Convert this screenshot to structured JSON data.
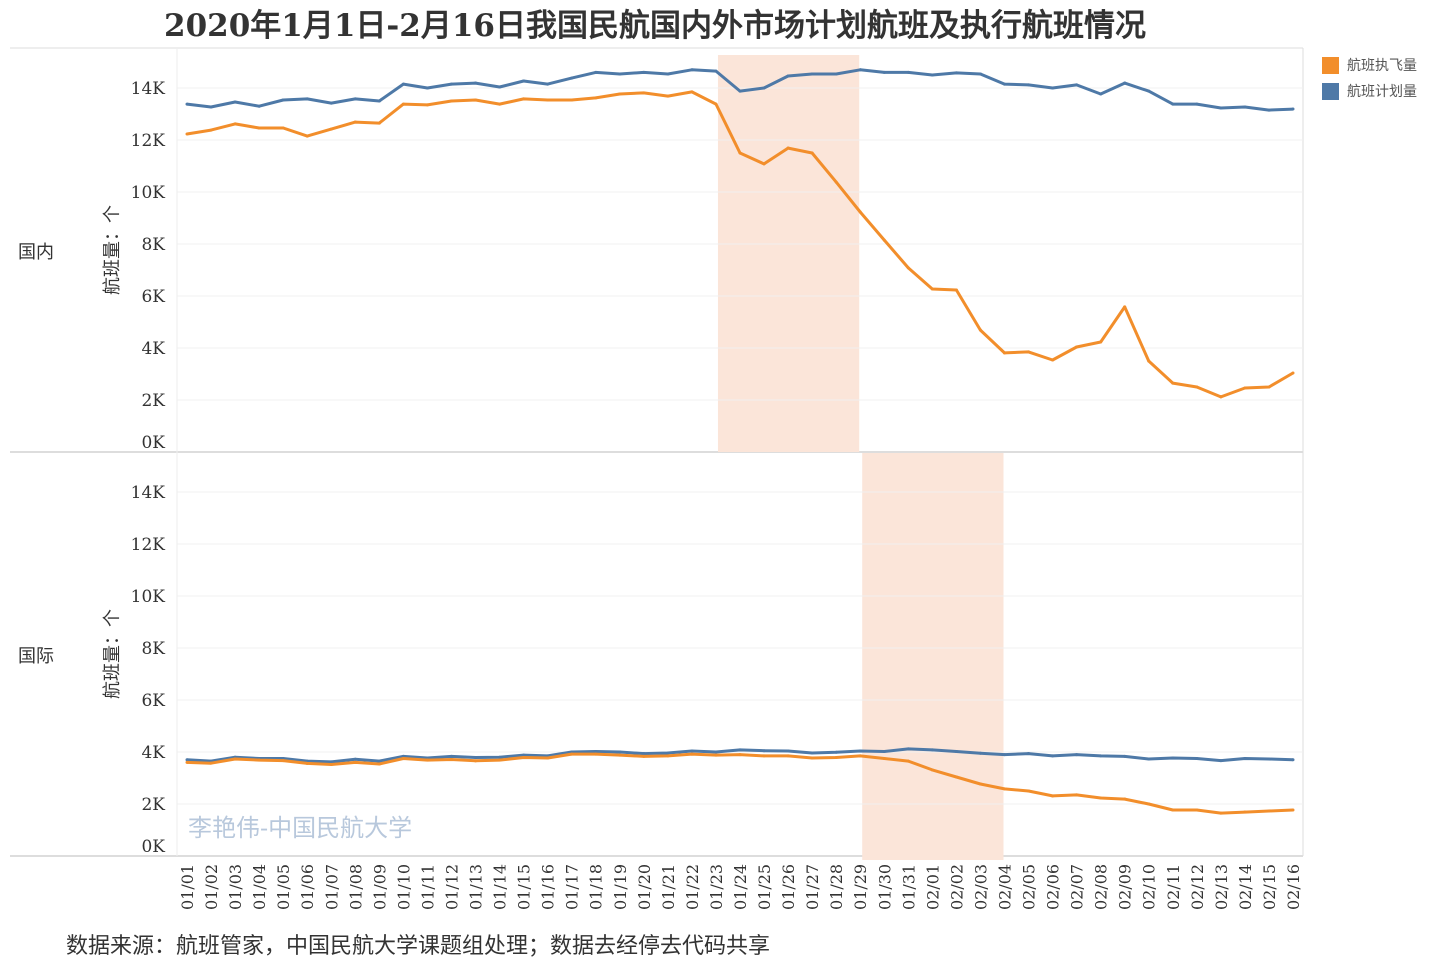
{
  "title": "2020年1月1日-2月16日我国民航国内外市场计划航班及执行航班情况",
  "source": "数据来源：航班管家，中国民航大学课题组处理；数据去经停去代码共享",
  "watermark": "李艳伟-中国民航大学",
  "colors": {
    "executed": "#f28e2b",
    "planned": "#4e79a7",
    "highlight": "#fbe5d9"
  },
  "chart_data": {
    "type": "line",
    "title": "2020年1月1日-2月16日我国民航国内外市场计划航班及执行航班情况",
    "ylabel": "航班量：个",
    "yticks": [
      "0K",
      "2K",
      "4K",
      "6K",
      "8K",
      "10K",
      "12K",
      "14K"
    ],
    "ylim": [
      0,
      15.5
    ],
    "legend": [
      {
        "name": "航班执飞量",
        "key": "executed"
      },
      {
        "name": "航班计划量",
        "key": "planned"
      }
    ],
    "legend_position": "right",
    "x": [
      "01/01",
      "01/02",
      "01/03",
      "01/04",
      "01/05",
      "01/06",
      "01/07",
      "01/08",
      "01/09",
      "01/10",
      "01/11",
      "01/12",
      "01/13",
      "01/14",
      "01/15",
      "01/16",
      "01/17",
      "01/18",
      "01/19",
      "01/20",
      "01/21",
      "01/22",
      "01/23",
      "01/24",
      "01/25",
      "01/26",
      "01/27",
      "01/28",
      "01/29",
      "01/30",
      "01/31",
      "02/01",
      "02/02",
      "02/03",
      "02/04",
      "02/05",
      "02/06",
      "02/07",
      "02/08",
      "02/09",
      "02/10",
      "02/11",
      "02/12",
      "02/13",
      "02/14",
      "02/15",
      "02/16"
    ],
    "panels": [
      {
        "name": "国内",
        "highlight": [
          "01/23",
          "01/29"
        ],
        "series": [
          {
            "name": "航班计划量",
            "key": "planned",
            "values": [
              13.38,
              13.27,
              13.46,
              13.3,
              13.54,
              13.58,
              13.42,
              13.58,
              13.5,
              14.15,
              14.0,
              14.15,
              14.19,
              14.04,
              14.27,
              14.15,
              14.38,
              14.6,
              14.54,
              14.6,
              14.54,
              14.7,
              14.65,
              13.88,
              14.0,
              14.46,
              14.54,
              14.54,
              14.7,
              14.6,
              14.6,
              14.5,
              14.58,
              14.54,
              14.15,
              14.12,
              14.0,
              14.12,
              13.77,
              14.19,
              13.88,
              13.38,
              13.38,
              13.23,
              13.27,
              13.15,
              13.19
            ]
          },
          {
            "name": "航班执飞量",
            "key": "executed",
            "values": [
              12.23,
              12.38,
              12.62,
              12.46,
              12.46,
              12.15,
              12.42,
              12.69,
              12.65,
              13.38,
              13.35,
              13.5,
              13.54,
              13.38,
              13.58,
              13.54,
              13.54,
              13.62,
              13.77,
              13.81,
              13.69,
              13.85,
              13.38,
              11.5,
              11.08,
              11.69,
              11.5,
              10.38,
              9.23,
              8.15,
              7.08,
              6.27,
              6.23,
              4.69,
              3.81,
              3.85,
              3.54,
              4.04,
              4.23,
              5.58,
              3.5,
              2.65,
              2.5,
              2.12,
              2.46,
              2.5,
              3.04
            ]
          }
        ]
      },
      {
        "name": "国际",
        "highlight": [
          "01/29",
          "02/04"
        ],
        "series": [
          {
            "name": "航班计划量",
            "key": "planned",
            "values": [
              3.7,
              3.65,
              3.8,
              3.75,
              3.75,
              3.65,
              3.62,
              3.72,
              3.65,
              3.83,
              3.77,
              3.83,
              3.79,
              3.8,
              3.88,
              3.85,
              4.0,
              4.02,
              4.0,
              3.94,
              3.96,
              4.04,
              4.0,
              4.08,
              4.05,
              4.04,
              3.96,
              3.99,
              4.04,
              4.02,
              4.12,
              4.08,
              4.02,
              3.95,
              3.9,
              3.94,
              3.85,
              3.9,
              3.85,
              3.83,
              3.73,
              3.77,
              3.75,
              3.67,
              3.75,
              3.73,
              3.7
            ]
          },
          {
            "name": "航班执飞量",
            "key": "executed",
            "values": [
              3.6,
              3.57,
              3.73,
              3.69,
              3.67,
              3.56,
              3.52,
              3.6,
              3.54,
              3.75,
              3.69,
              3.71,
              3.66,
              3.69,
              3.79,
              3.77,
              3.92,
              3.92,
              3.88,
              3.83,
              3.85,
              3.92,
              3.88,
              3.9,
              3.85,
              3.85,
              3.77,
              3.79,
              3.85,
              3.75,
              3.65,
              3.31,
              3.04,
              2.77,
              2.58,
              2.5,
              2.31,
              2.35,
              2.23,
              2.19,
              2.0,
              1.77,
              1.77,
              1.65,
              1.69,
              1.73,
              1.77
            ]
          }
        ]
      }
    ]
  }
}
